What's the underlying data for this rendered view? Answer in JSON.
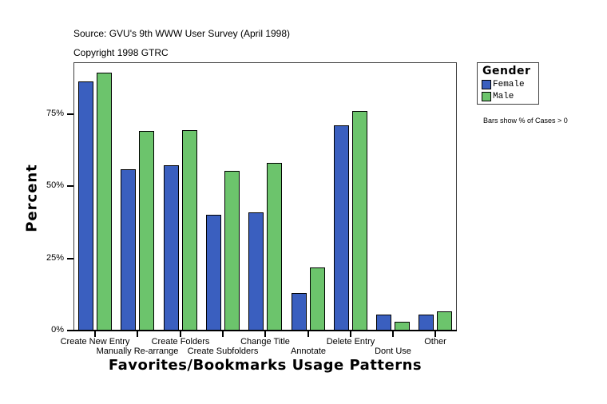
{
  "header": {
    "source": "Source: GVU's 9th WWW User Survey (April 1998)",
    "copyright": "Copyright 1998 GTRC"
  },
  "axes": {
    "y_title": "Percent",
    "x_title": "Favorites/Bookmarks Usage Patterns",
    "y_ticks": [
      "0%",
      "25%",
      "50%",
      "75%"
    ]
  },
  "legend": {
    "title": "Gender",
    "items": [
      {
        "label": "Female",
        "color": "#3a5fbf"
      },
      {
        "label": "Male",
        "color": "#6cc46c"
      }
    ]
  },
  "note": "Bars show % of Cases > 0",
  "chart_data": {
    "type": "bar",
    "title": "",
    "subtitle": "Source: GVU's 9th WWW User Survey (April 1998) / Copyright 1998 GTRC",
    "xlabel": "Favorites/Bookmarks Usage Patterns",
    "ylabel": "Percent",
    "ylim": [
      0,
      93
    ],
    "yticks": [
      0,
      25,
      50,
      75
    ],
    "grid": false,
    "legend_position": "right",
    "legend_title": "Gender",
    "annotation": "Bars show % of Cases > 0",
    "categories": [
      "Create New Entry",
      "Manually Re-arrange",
      "Create Folders",
      "Create Subfolders",
      "Change Title",
      "Annotate",
      "Delete Entry",
      "Dont Use",
      "Other"
    ],
    "series": [
      {
        "name": "Female",
        "color": "#3a5fbf",
        "values": [
          86.4,
          55.8,
          57.2,
          40.0,
          40.9,
          12.9,
          71.0,
          5.4,
          5.4
        ]
      },
      {
        "name": "Male",
        "color": "#6cc46c",
        "values": [
          89.4,
          69.1,
          69.4,
          55.3,
          58.0,
          21.8,
          76.0,
          3.0,
          6.6
        ]
      }
    ]
  }
}
